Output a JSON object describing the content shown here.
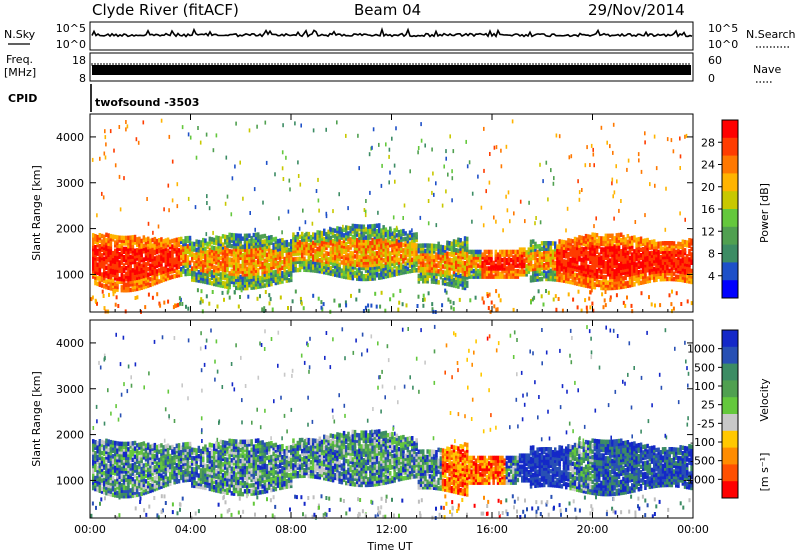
{
  "header": {
    "station": "Clyde River (fitACF)",
    "beam": "Beam 04",
    "date": "29/Nov/2014"
  },
  "top_panels": {
    "nsky_label": "N.Sky",
    "nsky_ticks": [
      "10^5",
      "10^0"
    ],
    "nsearch_label": "N.Search",
    "nsearch_ticks": [
      "10^5",
      "10^0"
    ],
    "freq_label": "Freq.",
    "freq_unit": "[MHz]",
    "freq_ticks": [
      "18",
      "8"
    ],
    "nave_label": "Nave",
    "nave_ticks": [
      "60",
      "0"
    ],
    "cpid_label": "CPID",
    "cpid_value": "twofsound -3503"
  },
  "colors": {
    "power_scale": [
      "#0000ff",
      "#1e50c8",
      "#3c8c64",
      "#50a050",
      "#64c83c",
      "#c8c800",
      "#ffb400",
      "#ff7800",
      "#ff3c00",
      "#ff0000"
    ],
    "velocity_scale": [
      "#1428c8",
      "#2850b4",
      "#3c8c64",
      "#50a050",
      "#64c83c",
      "#c8c8c8",
      "#ffc800",
      "#ff8c00",
      "#ff5000",
      "#ff0000"
    ],
    "ground_scatter": "#bebebe"
  },
  "chart_data": [
    {
      "type": "heatmap",
      "panel": "power",
      "ylabel": "Slant Range [km]",
      "y_ticks": [
        "1000",
        "2000",
        "3000",
        "4000"
      ],
      "ylim": [
        180,
        4500
      ],
      "x_ticks": [
        "00:00",
        "04:00",
        "08:00",
        "12:00",
        "16:00",
        "20:00",
        "00:00"
      ],
      "xlim_hours": [
        0,
        24
      ],
      "colorbar_label": "Power [dB]",
      "colorbar_ticks": [
        "4",
        "8",
        "12",
        "16",
        "20",
        "24",
        "28"
      ],
      "colorbar_range": [
        0,
        30
      ]
    },
    {
      "type": "heatmap",
      "panel": "velocity",
      "ylabel": "Slant Range [km]",
      "xlabel": "Time UT",
      "y_ticks": [
        "1000",
        "2000",
        "3000",
        "4000"
      ],
      "ylim": [
        180,
        4500
      ],
      "x_ticks": [
        "00:00",
        "04:00",
        "08:00",
        "12:00",
        "16:00",
        "20:00",
        "00:00"
      ],
      "xlim_hours": [
        0,
        24
      ],
      "colorbar_label": "Velocity",
      "colorbar_unit": "[m s⁻¹]",
      "colorbar_ticks": [
        "1000",
        "500",
        "100",
        "25",
        "-25",
        "-100",
        "-500",
        "-1000"
      ]
    }
  ]
}
